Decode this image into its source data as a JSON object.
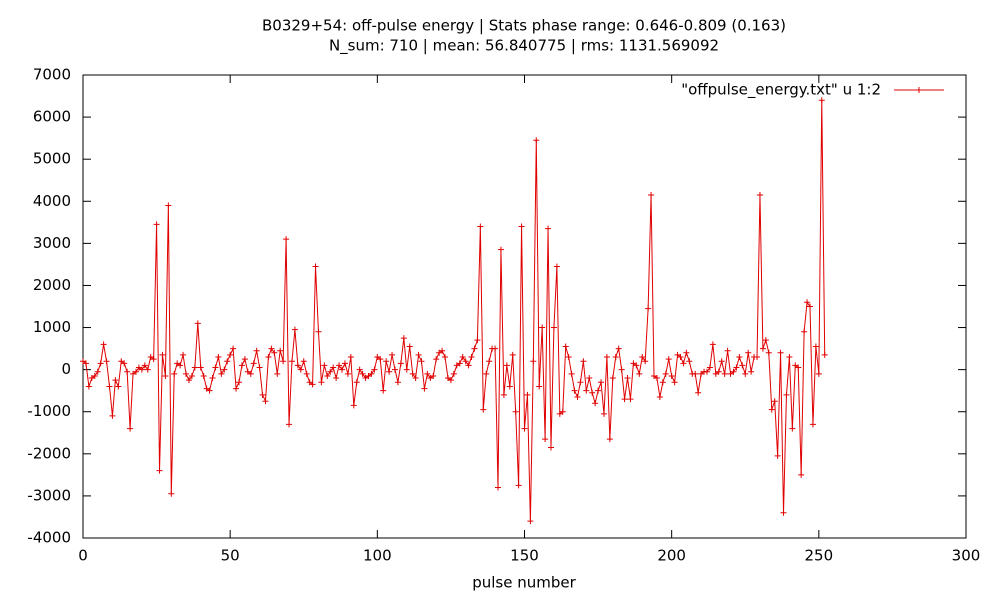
{
  "chart_data": {
    "type": "line",
    "title": "B0329+54: off-pulse energy | Stats phase range: 0.646-0.809 (0.163)",
    "subtitle": "N_sum: 710 | mean: 56.840775 | rms: 1131.569092",
    "x_label": "pulse number",
    "xlim": [
      0,
      300
    ],
    "xticks": [
      0,
      50,
      100,
      150,
      200,
      250,
      300
    ],
    "ylim": [
      -4000,
      7000
    ],
    "yticks": [
      -4000,
      -3000,
      -2000,
      -1000,
      0,
      1000,
      2000,
      3000,
      4000,
      5000,
      6000,
      7000
    ],
    "grid": false,
    "legend": "top-right",
    "x": [
      0,
      1,
      2,
      3,
      4,
      5,
      6,
      7,
      8,
      9,
      10,
      11,
      12,
      13,
      14,
      15,
      16,
      17,
      18,
      19,
      20,
      21,
      22,
      23,
      24,
      25,
      26,
      27,
      28,
      29,
      30,
      31,
      32,
      33,
      34,
      35,
      36,
      37,
      38,
      39,
      40,
      41,
      42,
      43,
      44,
      45,
      46,
      47,
      48,
      49,
      50,
      51,
      52,
      53,
      54,
      55,
      56,
      57,
      58,
      59,
      60,
      61,
      62,
      63,
      64,
      65,
      66,
      67,
      68,
      69,
      70,
      71,
      72,
      73,
      74,
      75,
      76,
      77,
      78,
      79,
      80,
      81,
      82,
      83,
      84,
      85,
      86,
      87,
      88,
      89,
      90,
      91,
      92,
      93,
      94,
      95,
      96,
      97,
      98,
      99,
      100,
      101,
      102,
      103,
      104,
      105,
      106,
      107,
      108,
      109,
      110,
      111,
      112,
      113,
      114,
      115,
      116,
      117,
      118,
      119,
      120,
      121,
      122,
      123,
      124,
      125,
      126,
      127,
      128,
      129,
      130,
      131,
      132,
      133,
      134,
      135,
      136,
      137,
      138,
      139,
      140,
      141,
      142,
      143,
      144,
      145,
      146,
      147,
      148,
      149,
      150,
      151,
      152,
      153,
      154,
      155,
      156,
      157,
      158,
      159,
      160,
      161,
      162,
      163,
      164,
      165,
      166,
      167,
      168,
      169,
      170,
      171,
      172,
      173,
      174,
      175,
      176,
      177,
      178,
      179,
      180,
      181,
      182,
      183,
      184,
      185,
      186,
      187,
      188,
      189,
      190,
      191,
      192,
      193,
      194,
      195,
      196,
      197,
      198,
      199,
      200,
      201,
      202,
      203,
      204,
      205,
      206,
      207,
      208,
      209,
      210,
      211,
      212,
      213,
      214,
      215,
      216,
      217,
      218,
      219,
      220,
      221,
      222,
      223,
      224,
      225,
      226,
      227,
      228,
      229,
      230,
      231,
      232,
      233,
      234,
      235,
      236,
      237,
      238,
      239,
      240,
      241,
      242,
      243,
      244,
      245,
      246,
      247,
      248,
      249,
      250,
      251,
      252
    ],
    "series": [
      {
        "name": "\"offpulse_energy.txt\" u 1:2",
        "color": "#e00000",
        "values": [
          200,
          150,
          -400,
          -200,
          -150,
          -50,
          150,
          600,
          200,
          -400,
          -1100,
          -250,
          -400,
          200,
          150,
          -50,
          -1400,
          -100,
          -50,
          50,
          0,
          100,
          0,
          300,
          250,
          3450,
          -2400,
          350,
          -150,
          3900,
          -2950,
          -100,
          150,
          100,
          350,
          -100,
          -250,
          -150,
          50,
          1100,
          50,
          -150,
          -450,
          -500,
          -200,
          50,
          300,
          -100,
          0,
          200,
          350,
          500,
          -450,
          -300,
          100,
          250,
          -50,
          -100,
          150,
          450,
          50,
          -600,
          -750,
          300,
          500,
          400,
          -100,
          450,
          200,
          3100,
          -1300,
          200,
          950,
          100,
          0,
          200,
          -100,
          -300,
          -350,
          2450,
          900,
          -300,
          100,
          -150,
          -50,
          50,
          -200,
          100,
          0,
          150,
          -100,
          300,
          -850,
          -300,
          0,
          -100,
          -200,
          -150,
          -100,
          0,
          300,
          250,
          -500,
          200,
          -50,
          350,
          0,
          -300,
          150,
          750,
          0,
          550,
          -100,
          -200,
          350,
          200,
          -450,
          -100,
          -200,
          -150,
          250,
          400,
          450,
          300,
          -200,
          -250,
          -100,
          100,
          150,
          300,
          200,
          100,
          300,
          500,
          700,
          3400,
          -950,
          -100,
          200,
          500,
          500,
          -2800,
          2850,
          -600,
          100,
          -400,
          350,
          -1000,
          -2750,
          3400,
          -1400,
          -600,
          -3600,
          200,
          5450,
          -400,
          1000,
          -1650,
          3350,
          -1850,
          1000,
          2450,
          -1050,
          -1000,
          550,
          300,
          -100,
          -500,
          -650,
          -300,
          200,
          -500,
          -200,
          -550,
          -800,
          -500,
          -300,
          -1050,
          300,
          -1650,
          -200,
          300,
          500,
          0,
          -700,
          -200,
          -700,
          150,
          100,
          -100,
          300,
          200,
          1450,
          4150,
          -150,
          -200,
          -650,
          -300,
          -100,
          250,
          -150,
          -300,
          350,
          300,
          150,
          400,
          200,
          -100,
          -100,
          -550,
          -100,
          -50,
          -50,
          50,
          600,
          -100,
          -50,
          200,
          -100,
          450,
          -100,
          -50,
          50,
          300,
          100,
          -100,
          400,
          -50,
          300,
          300,
          4150,
          500,
          700,
          400,
          -950,
          -750,
          -2050,
          400,
          -3400,
          -600,
          300,
          -1400,
          100,
          50,
          -2500,
          900,
          1600,
          1500,
          -1300,
          550,
          -100,
          6400,
          350
        ]
      }
    ]
  }
}
